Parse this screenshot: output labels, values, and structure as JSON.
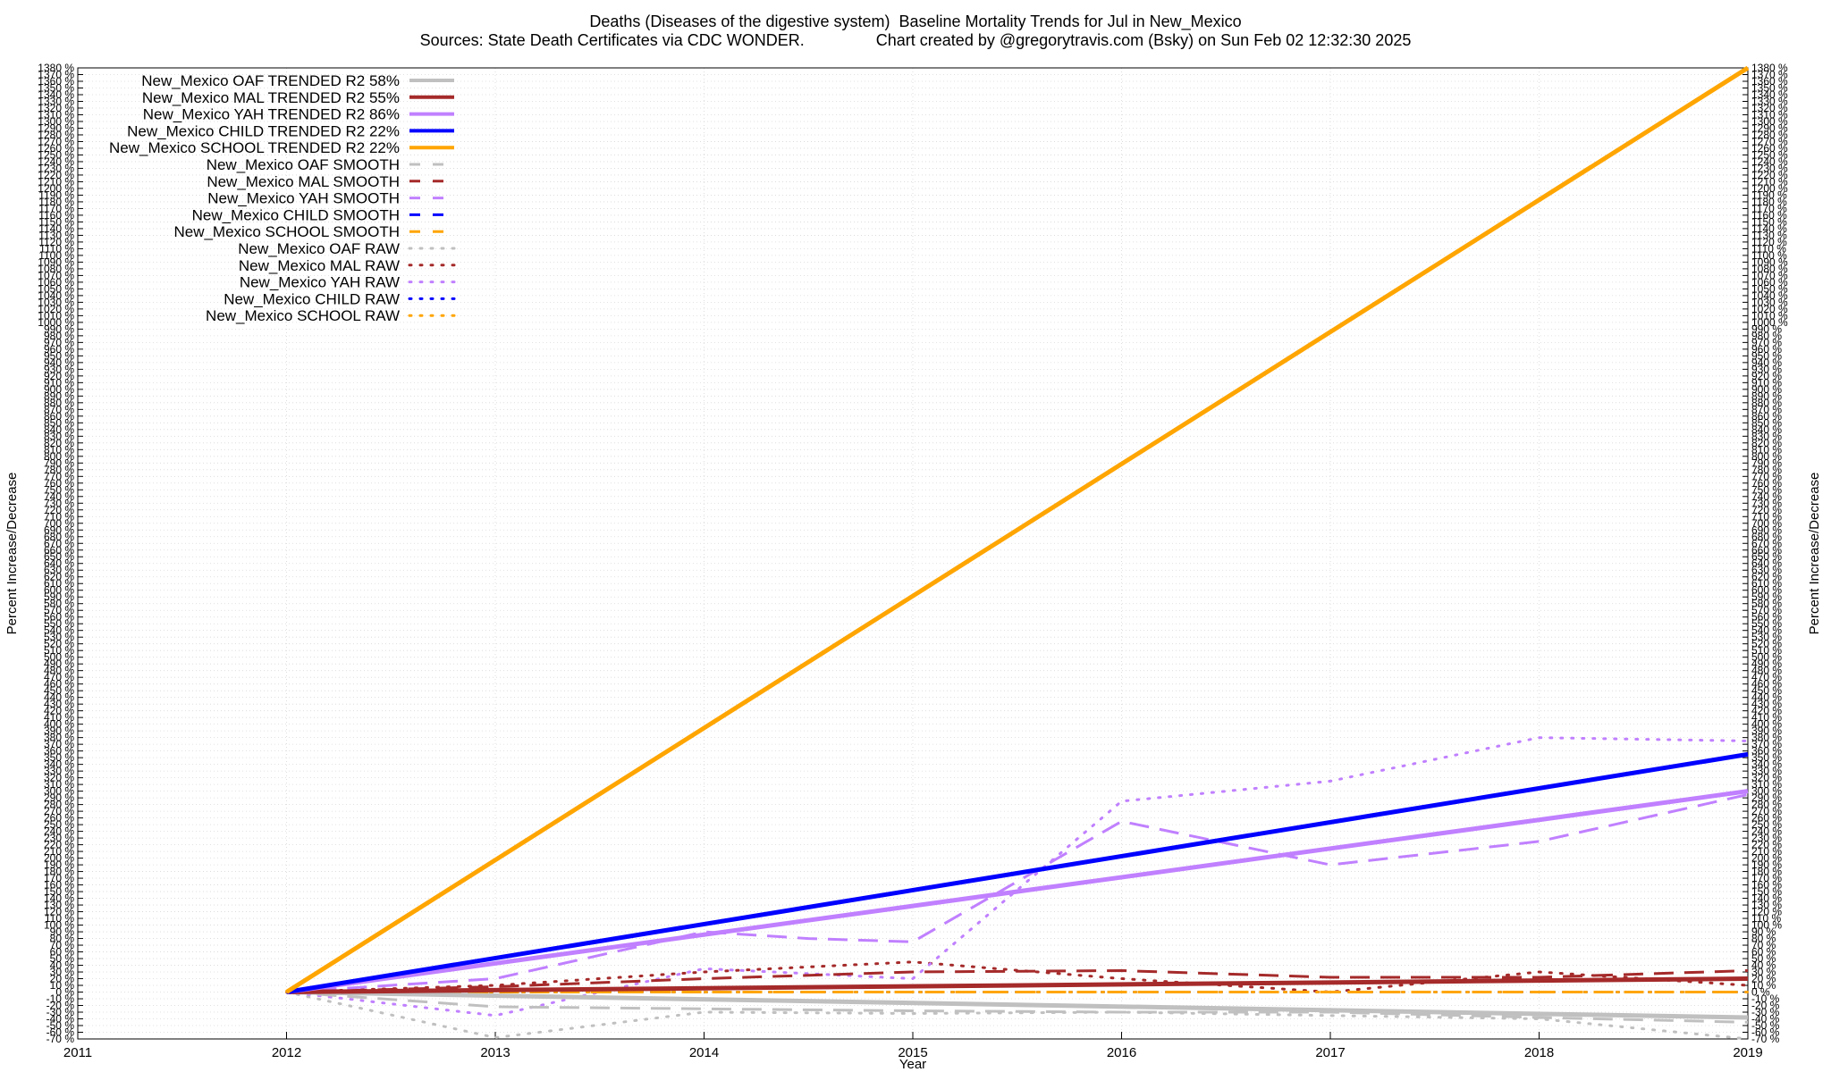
{
  "header": {
    "title": "Deaths (Diseases of the digestive system)  Baseline Mortality Trends for Jul in New_Mexico",
    "subtitle": "Sources: State Death Certificates via CDC WONDER.                Chart created by @gregorytravis.com (Bsky) on Sun Feb 02 12:32:30 2025"
  },
  "chart_data": {
    "type": "line",
    "title": "Deaths (Diseases of the digestive system)  Baseline Mortality Trends for Jul in New_Mexico",
    "subtitle": "Sources: State Death Certificates via CDC WONDER.                Chart created by @gregorytravis.com (Bsky) on Sun Feb 02 12:32:30 2025",
    "xlabel": "Year",
    "ylabel": "Percent Increase/Decrease",
    "xlim": [
      2011,
      2019
    ],
    "ylim": [
      -70,
      1380
    ],
    "x_ticks": [
      "2011",
      "2012",
      "2013",
      "2014",
      "2015",
      "2016",
      "2017",
      "2018",
      "2019"
    ],
    "y_tick_step": 10,
    "y_tick_suffix": " %",
    "grid": true,
    "legend_position": "top-left",
    "series": [
      {
        "name": "New_Mexico OAF TRENDED R2  58%",
        "color": "#c0c0c0",
        "style": "solid",
        "width": 5,
        "x": [
          2012,
          2019
        ],
        "y": [
          0,
          -38
        ]
      },
      {
        "name": "New_Mexico MAL TRENDED R2  55%",
        "color": "#a52a2a",
        "style": "solid",
        "width": 5,
        "x": [
          2012,
          2019
        ],
        "y": [
          0,
          20
        ]
      },
      {
        "name": "New_Mexico YAH TRENDED R2  86%",
        "color": "#c080ff",
        "style": "solid",
        "width": 5,
        "x": [
          2012,
          2019
        ],
        "y": [
          0,
          300
        ]
      },
      {
        "name": "New_Mexico CHILD TRENDED R2  22%",
        "color": "#0000ff",
        "style": "solid",
        "width": 5,
        "x": [
          2012,
          2019
        ],
        "y": [
          0,
          355
        ]
      },
      {
        "name": "New_Mexico SCHOOL TRENDED R2  22%",
        "color": "#ffa500",
        "style": "solid",
        "width": 5,
        "x": [
          2012,
          2019
        ],
        "y": [
          0,
          1380
        ]
      },
      {
        "name": "New_Mexico OAF SMOOTH",
        "color": "#c0c0c0",
        "style": "dashed",
        "width": 3,
        "x": [
          2012,
          2013,
          2014,
          2015,
          2016,
          2017,
          2018,
          2019
        ],
        "y": [
          0,
          -22,
          -25,
          -28,
          -30,
          -30,
          -38,
          -45
        ]
      },
      {
        "name": "New_Mexico MAL SMOOTH",
        "color": "#a52a2a",
        "style": "dashed",
        "width": 3,
        "x": [
          2012,
          2013,
          2014,
          2015,
          2016,
          2017,
          2018,
          2019
        ],
        "y": [
          0,
          8,
          20,
          30,
          32,
          22,
          22,
          32
        ]
      },
      {
        "name": "New_Mexico YAH SMOOTH",
        "color": "#c080ff",
        "style": "dashed",
        "width": 3,
        "x": [
          2012,
          2013,
          2014,
          2014.5,
          2015,
          2016,
          2017,
          2018,
          2019
        ],
        "y": [
          0,
          20,
          90,
          80,
          75,
          255,
          190,
          225,
          295
        ]
      },
      {
        "name": "New_Mexico CHILD SMOOTH",
        "color": "#0000ff",
        "style": "dashed",
        "width": 3,
        "x": [
          2012,
          2013,
          2014,
          2015,
          2016,
          2017,
          2018,
          2019
        ],
        "y": [
          0,
          0,
          0,
          0,
          0,
          0,
          0,
          0
        ]
      },
      {
        "name": "New_Mexico SCHOOL SMOOTH",
        "color": "#ffa500",
        "style": "dashed",
        "width": 3,
        "x": [
          2012,
          2019
        ],
        "y": [
          0,
          0
        ]
      },
      {
        "name": "New_Mexico OAF RAW",
        "color": "#c0c0c0",
        "style": "dotted",
        "width": 3,
        "x": [
          2012,
          2013,
          2014,
          2015,
          2016,
          2017,
          2018,
          2019
        ],
        "y": [
          0,
          -68,
          -30,
          -32,
          -30,
          -35,
          -40,
          -70
        ]
      },
      {
        "name": "New_Mexico MAL RAW",
        "color": "#a52a2a",
        "style": "dotted",
        "width": 3,
        "x": [
          2012,
          2013,
          2014,
          2015,
          2016,
          2017,
          2018,
          2019
        ],
        "y": [
          0,
          10,
          30,
          45,
          20,
          0,
          30,
          10
        ]
      },
      {
        "name": "New_Mexico YAH RAW",
        "color": "#c080ff",
        "style": "dotted",
        "width": 3,
        "x": [
          2012,
          2013,
          2014,
          2015,
          2016,
          2017,
          2018,
          2019
        ],
        "y": [
          0,
          -35,
          35,
          20,
          285,
          315,
          380,
          375
        ]
      },
      {
        "name": "New_Mexico CHILD RAW",
        "color": "#0000ff",
        "style": "dotted",
        "width": 3,
        "x": [
          2012,
          2019
        ],
        "y": [
          0,
          0
        ]
      },
      {
        "name": "New_Mexico SCHOOL RAW",
        "color": "#ffa500",
        "style": "dotted",
        "width": 3,
        "x": [
          2012,
          2019
        ],
        "y": [
          0,
          0
        ]
      }
    ]
  }
}
